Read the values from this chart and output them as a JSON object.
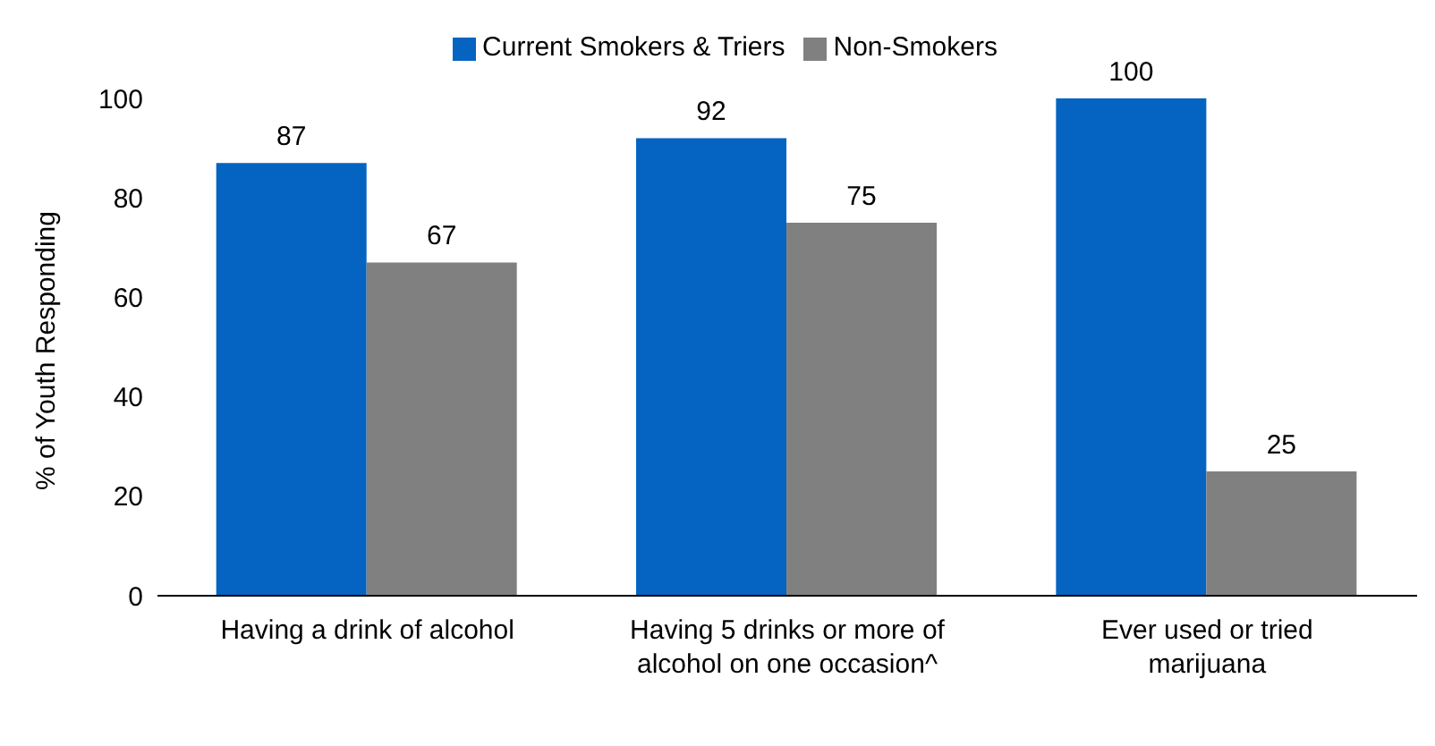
{
  "chart_data": {
    "type": "bar",
    "ylabel": "% of Youth Responding",
    "categories": [
      "Having a drink of alcohol",
      "Having 5 drinks or more of alcohol on one occasion^",
      "Ever used or tried marijuana"
    ],
    "series": [
      {
        "name": "Current Smokers & Triers",
        "color": "#0563c1",
        "values": [
          87,
          92,
          100
        ]
      },
      {
        "name": "Non-Smokers",
        "color": "#808080",
        "values": [
          67,
          75,
          25
        ]
      }
    ],
    "ylim": [
      0,
      100
    ],
    "yticks": [
      0,
      20,
      40,
      60,
      80,
      100
    ],
    "grid": false,
    "legend": "top",
    "data_labels": true
  }
}
